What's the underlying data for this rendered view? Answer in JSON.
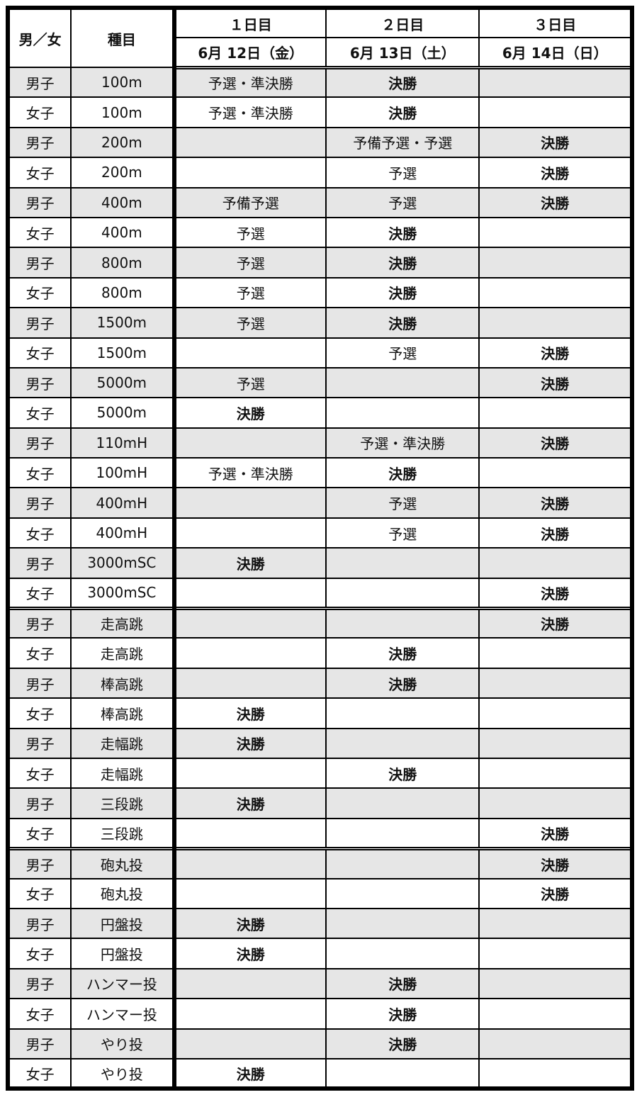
{
  "header": {
    "gender": "男／女",
    "event": "種目",
    "days": [
      {
        "label": "１日目",
        "date": "6月 12日（金）"
      },
      {
        "label": "２日目",
        "date": "6月 13日（土）"
      },
      {
        "label": "３日目",
        "date": "6月 14日（日）"
      }
    ]
  },
  "rows": [
    [
      "男子",
      "100m",
      "予選・準決勝",
      "決勝",
      ""
    ],
    [
      "女子",
      "100m",
      "予選・準決勝",
      "決勝",
      ""
    ],
    [
      "男子",
      "200m",
      "",
      "予備予選・予選",
      "決勝"
    ],
    [
      "女子",
      "200m",
      "",
      "予選",
      "決勝"
    ],
    [
      "男子",
      "400m",
      "予備予選",
      "予選",
      "決勝"
    ],
    [
      "女子",
      "400m",
      "予選",
      "決勝",
      ""
    ],
    [
      "男子",
      "800m",
      "予選",
      "決勝",
      ""
    ],
    [
      "女子",
      "800m",
      "予選",
      "決勝",
      ""
    ],
    [
      "男子",
      "1500m",
      "予選",
      "決勝",
      ""
    ],
    [
      "女子",
      "1500m",
      "",
      "予選",
      "決勝"
    ],
    [
      "男子",
      "5000m",
      "予選",
      "",
      "決勝"
    ],
    [
      "女子",
      "5000m",
      "決勝",
      "",
      ""
    ],
    [
      "男子",
      "110mH",
      "",
      "予選・準決勝",
      "決勝"
    ],
    [
      "女子",
      "100mH",
      "予選・準決勝",
      "決勝",
      ""
    ],
    [
      "男子",
      "400mH",
      "",
      "予選",
      "決勝"
    ],
    [
      "女子",
      "400mH",
      "",
      "予選",
      "決勝"
    ],
    [
      "男子",
      "3000mSC",
      "決勝",
      "",
      ""
    ],
    [
      "女子",
      "3000mSC",
      "",
      "",
      "決勝"
    ],
    [
      "男子",
      "走高跳",
      "",
      "",
      "決勝"
    ],
    [
      "女子",
      "走高跳",
      "",
      "決勝",
      ""
    ],
    [
      "男子",
      "棒高跳",
      "",
      "決勝",
      ""
    ],
    [
      "女子",
      "棒高跳",
      "決勝",
      "",
      ""
    ],
    [
      "男子",
      "走幅跳",
      "決勝",
      "",
      ""
    ],
    [
      "女子",
      "走幅跳",
      "",
      "決勝",
      ""
    ],
    [
      "男子",
      "三段跳",
      "決勝",
      "",
      ""
    ],
    [
      "女子",
      "三段跳",
      "",
      "",
      "決勝"
    ],
    [
      "男子",
      "砲丸投",
      "",
      "",
      "決勝"
    ],
    [
      "女子",
      "砲丸投",
      "",
      "",
      "決勝"
    ],
    [
      "男子",
      "円盤投",
      "決勝",
      "",
      ""
    ],
    [
      "女子",
      "円盤投",
      "決勝",
      "",
      ""
    ],
    [
      "男子",
      "ハンマー投",
      "",
      "決勝",
      ""
    ],
    [
      "女子",
      "ハンマー投",
      "",
      "決勝",
      ""
    ],
    [
      "男子",
      "やり投",
      "",
      "決勝",
      ""
    ],
    [
      "女子",
      "やり投",
      "決勝",
      "",
      ""
    ]
  ]
}
